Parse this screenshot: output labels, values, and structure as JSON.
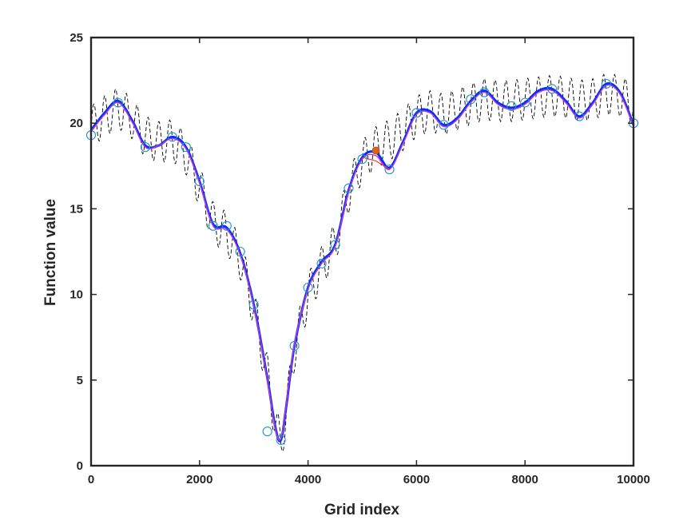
{
  "chart_data": {
    "type": "line",
    "title": "",
    "xlabel": "Grid index",
    "ylabel": "Function value",
    "xlim": [
      0,
      10000
    ],
    "ylim": [
      0,
      25
    ],
    "x_ticks": [
      0,
      2000,
      4000,
      6000,
      8000,
      10000
    ],
    "x_tick_labels": [
      "0",
      "2000",
      "4000",
      "6000",
      "8000",
      "10000"
    ],
    "y_ticks": [
      0,
      5,
      10,
      15,
      20,
      25
    ],
    "y_tick_labels": [
      "0",
      "5",
      "10",
      "15",
      "20",
      "25"
    ],
    "grid": false,
    "legend": "none",
    "series": [
      {
        "style": "smooth-solid",
        "color": "#0033ff",
        "x": [
          0,
          250,
          500,
          750,
          1000,
          1250,
          1500,
          1750,
          2000,
          2250,
          2500,
          2750,
          3000,
          3250,
          3400,
          3500,
          3600,
          3750,
          4000,
          4250,
          4500,
          4750,
          5000,
          5250,
          5500,
          5750,
          6000,
          6250,
          6500,
          6750,
          7000,
          7250,
          7500,
          7750,
          8000,
          8250,
          8500,
          8750,
          9000,
          9250,
          9500,
          9750,
          10000
        ],
        "y": [
          19.6,
          20.6,
          21.3,
          20.2,
          18.7,
          18.7,
          19.2,
          18.6,
          16.6,
          14.1,
          13.9,
          12.4,
          9.4,
          5.1,
          2.2,
          1.5,
          3.5,
          7.0,
          10.4,
          11.9,
          12.9,
          16.1,
          18.0,
          18.3,
          17.4,
          18.9,
          20.6,
          20.7,
          19.9,
          20.3,
          21.3,
          21.9,
          21.2,
          20.9,
          21.2,
          21.9,
          22.0,
          21.3,
          20.4,
          21.2,
          22.3,
          21.8,
          19.9
        ]
      },
      {
        "style": "smooth-solid",
        "color": "#cc33cc",
        "x": [
          0,
          250,
          500,
          750,
          1000,
          1250,
          1500,
          1750,
          2000,
          2250,
          2500,
          2750,
          3000,
          3250,
          3400,
          3500,
          3600,
          3750,
          4000,
          4250,
          4500,
          4750,
          5000,
          5250,
          5500,
          5750,
          6000,
          6250,
          6500,
          6750,
          7000,
          7250,
          7500,
          7750,
          8000,
          8250,
          8500,
          8750,
          9000,
          9250,
          9500,
          9750,
          10000
        ],
        "y": [
          19.5,
          20.5,
          21.2,
          20.1,
          18.6,
          18.7,
          19.1,
          18.5,
          16.5,
          14.0,
          13.8,
          12.3,
          9.3,
          5.0,
          2.1,
          1.6,
          3.6,
          7.1,
          10.3,
          11.8,
          12.8,
          16.0,
          17.9,
          18.1,
          17.3,
          18.8,
          20.5,
          20.6,
          19.8,
          20.2,
          21.2,
          21.8,
          21.1,
          20.8,
          21.1,
          21.8,
          21.9,
          21.2,
          20.3,
          21.1,
          22.2,
          21.7,
          19.8
        ]
      },
      {
        "style": "thin-solid",
        "color": "#ff2a2a",
        "x": [
          5000,
          5250,
          5500
        ],
        "y": [
          18.0,
          17.8,
          17.3
        ]
      },
      {
        "style": "oscillating-dashed",
        "color": "#000000",
        "oscillation_amplitude": 1.2,
        "oscillation_period": 200,
        "x": [
          0,
          250,
          500,
          750,
          1000,
          1250,
          1500,
          1750,
          2000,
          2250,
          2500,
          2750,
          3000,
          3250,
          3400,
          3500,
          3600,
          3750,
          4000,
          4250,
          4500,
          4750,
          5000,
          5250,
          5500,
          5750,
          6000,
          6250,
          6500,
          6750,
          7000,
          7250,
          7500,
          7750,
          8000,
          8250,
          8500,
          8750,
          9000,
          9250,
          9500,
          9750,
          10000
        ],
        "y": [
          19.8,
          20.4,
          20.9,
          20.3,
          19.2,
          18.9,
          19.0,
          18.2,
          16.3,
          14.2,
          13.6,
          12.1,
          9.2,
          5.3,
          2.4,
          1.2,
          3.2,
          6.8,
          10.0,
          11.6,
          13.0,
          16.0,
          17.8,
          18.6,
          19.0,
          19.6,
          20.4,
          20.7,
          20.5,
          20.8,
          21.1,
          21.4,
          21.3,
          21.3,
          21.4,
          21.5,
          21.6,
          21.5,
          21.3,
          21.4,
          21.7,
          21.6,
          21.1
        ]
      },
      {
        "style": "circle-markers",
        "color": "#1e90d8",
        "x": [
          0,
          500,
          1000,
          1500,
          1750,
          2000,
          2250,
          2500,
          2750,
          3000,
          3250,
          3500,
          3750,
          4000,
          4250,
          4500,
          4750,
          5000,
          5500,
          6000,
          6500,
          7000,
          7250,
          7750,
          8000,
          8500,
          9000,
          9500,
          10000
        ],
        "y": [
          19.3,
          21.2,
          18.6,
          19.2,
          18.6,
          16.6,
          14.0,
          14.0,
          12.5,
          9.4,
          2.0,
          1.5,
          7.0,
          10.4,
          11.8,
          12.9,
          16.2,
          17.9,
          17.3,
          20.6,
          19.9,
          21.4,
          21.8,
          21.0,
          21.2,
          22.0,
          20.4,
          22.3,
          20.0
        ]
      },
      {
        "style": "filled-point",
        "color": "#e0601a",
        "x": [
          5250
        ],
        "y": [
          18.4
        ]
      }
    ]
  }
}
